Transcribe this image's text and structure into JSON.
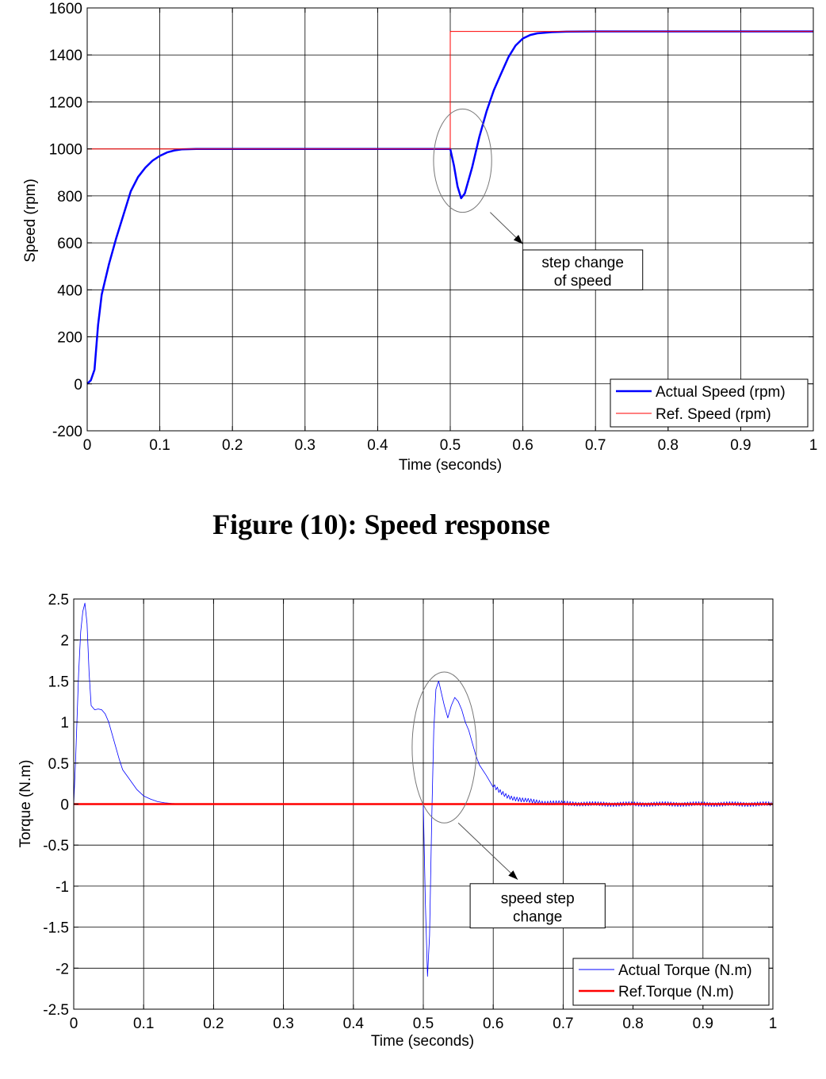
{
  "caption": "Figure (10): Speed response",
  "chart_data": [
    {
      "type": "line",
      "xlabel": "Time (seconds)",
      "ylabel": "Speed (rpm)",
      "xlim": [
        0,
        1
      ],
      "ylim": [
        -200,
        1600
      ],
      "grid": true,
      "xticks": [
        0,
        0.1,
        0.2,
        0.3,
        0.4,
        0.5,
        0.6,
        0.7,
        0.8,
        0.9,
        1
      ],
      "xtick_labels": [
        "0",
        "0.1",
        "0.2",
        "0.3",
        "0.4",
        "0.5",
        "0.6",
        "0.7",
        "0.8",
        "0.9",
        "1"
      ],
      "yticks": [
        -200,
        0,
        200,
        400,
        600,
        800,
        1000,
        1200,
        1400,
        1600
      ],
      "ytick_labels": [
        "-200",
        "0",
        "200",
        "400",
        "600",
        "800",
        "1000",
        "1200",
        "1400",
        "1600"
      ],
      "legend": {
        "placement": "bottom-right"
      },
      "series": [
        {
          "name": "Actual Speed (rpm)",
          "color": "#0000ff",
          "x": [
            0,
            0.005,
            0.01,
            0.015,
            0.02,
            0.03,
            0.04,
            0.05,
            0.06,
            0.07,
            0.08,
            0.09,
            0.1,
            0.11,
            0.12,
            0.13,
            0.15,
            0.2,
            0.3,
            0.4,
            0.5,
            0.505,
            0.51,
            0.515,
            0.52,
            0.53,
            0.54,
            0.55,
            0.56,
            0.57,
            0.58,
            0.59,
            0.6,
            0.61,
            0.62,
            0.64,
            0.66,
            0.7,
            0.8,
            1.0
          ],
          "y": [
            0,
            15,
            60,
            250,
            380,
            510,
            620,
            720,
            820,
            880,
            920,
            950,
            970,
            985,
            993,
            998,
            1000,
            1000,
            1000,
            1000,
            1000,
            930,
            840,
            790,
            810,
            920,
            1050,
            1160,
            1250,
            1320,
            1390,
            1440,
            1470,
            1485,
            1492,
            1497,
            1499,
            1500,
            1500,
            1500
          ]
        },
        {
          "name": "Ref. Speed (rpm)",
          "color": "#ff0000",
          "x": [
            0,
            0.5,
            0.5,
            1.0
          ],
          "y": [
            1000,
            1000,
            1500,
            1500
          ]
        }
      ],
      "annotation": {
        "text_lines": [
          "step change",
          "of speed"
        ],
        "ellipse_center": [
          0.517,
          950
        ],
        "ellipse_radius": [
          0.04,
          220
        ],
        "arrow_from": [
          0.555,
          730
        ],
        "arrow_to": [
          0.6,
          595
        ],
        "box_x": [
          0.6,
          0.765
        ],
        "box_y": [
          400,
          570
        ]
      }
    },
    {
      "type": "line",
      "xlabel": "Time (seconds)",
      "ylabel": "Torque (N.m)",
      "xlim": [
        0,
        1
      ],
      "ylim": [
        -2.5,
        2.5
      ],
      "grid": true,
      "xticks": [
        0,
        0.1,
        0.2,
        0.3,
        0.4,
        0.5,
        0.6,
        0.7,
        0.8,
        0.9,
        1
      ],
      "xtick_labels": [
        "0",
        "0.1",
        "0.2",
        "0.3",
        "0.4",
        "0.5",
        "0.6",
        "0.7",
        "0.8",
        "0.9",
        "1"
      ],
      "yticks": [
        -2.5,
        -2,
        -1.5,
        -1,
        -0.5,
        0,
        0.5,
        1,
        1.5,
        2,
        2.5
      ],
      "ytick_labels": [
        "-2.5",
        "-2",
        "-1.5",
        "-1",
        "-0.5",
        "0",
        "0.5",
        "1",
        "1.5",
        "2",
        "2.5"
      ],
      "legend": {
        "placement": "bottom-right"
      },
      "series": [
        {
          "name": "Actual Torque (N.m)",
          "color": "#0000ff",
          "x": [
            0,
            0.003,
            0.007,
            0.01,
            0.013,
            0.016,
            0.019,
            0.022,
            0.025,
            0.03,
            0.035,
            0.04,
            0.045,
            0.05,
            0.055,
            0.06,
            0.065,
            0.07,
            0.08,
            0.09,
            0.1,
            0.11,
            0.12,
            0.13,
            0.14,
            0.15,
            0.17,
            0.2,
            0.3,
            0.4,
            0.5,
            0.503,
            0.506,
            0.509,
            0.512,
            0.515,
            0.518,
            0.522,
            0.526,
            0.53,
            0.535,
            0.54,
            0.545,
            0.55,
            0.555,
            0.56,
            0.565,
            0.57,
            0.575,
            0.58,
            0.59,
            0.6,
            0.61,
            0.62,
            0.63,
            0.64,
            0.65,
            0.67,
            0.7,
            0.75,
            0.8,
            0.85,
            0.9,
            0.95,
            1.0
          ],
          "y": [
            0,
            0.6,
            1.6,
            2.1,
            2.35,
            2.45,
            2.2,
            1.6,
            1.2,
            1.15,
            1.16,
            1.15,
            1.1,
            1.0,
            0.85,
            0.7,
            0.55,
            0.42,
            0.3,
            0.18,
            0.1,
            0.06,
            0.03,
            0.015,
            0.008,
            0.004,
            0.002,
            0.0,
            0.0,
            0.0,
            0.0,
            -1.2,
            -2.1,
            -1.6,
            -0.2,
            0.9,
            1.4,
            1.5,
            1.35,
            1.2,
            1.05,
            1.2,
            1.3,
            1.25,
            1.15,
            1.0,
            0.9,
            0.75,
            0.6,
            0.48,
            0.35,
            0.22,
            0.15,
            0.1,
            0.07,
            0.05,
            0.04,
            0.02,
            0.01,
            0.0,
            0.0,
            0.0,
            0.0,
            0.0,
            0.0
          ],
          "noise": {
            "x_range": [
              0.6,
              1.0
            ],
            "amplitude": 0.03
          }
        },
        {
          "name": "Ref.Torque (N.m)",
          "color": "#ff0000",
          "x": [
            0,
            1.0
          ],
          "y": [
            0,
            0
          ]
        }
      ],
      "annotation": {
        "text_lines": [
          "speed step",
          "change"
        ],
        "ellipse_center": [
          0.53,
          0.69
        ],
        "ellipse_radius": [
          0.046,
          0.92
        ],
        "arrow_from": [
          0.55,
          -0.23
        ],
        "arrow_to": [
          0.635,
          -0.92
        ],
        "box_x": [
          0.567,
          0.76
        ],
        "box_y": [
          -1.51,
          -0.97
        ]
      }
    }
  ]
}
